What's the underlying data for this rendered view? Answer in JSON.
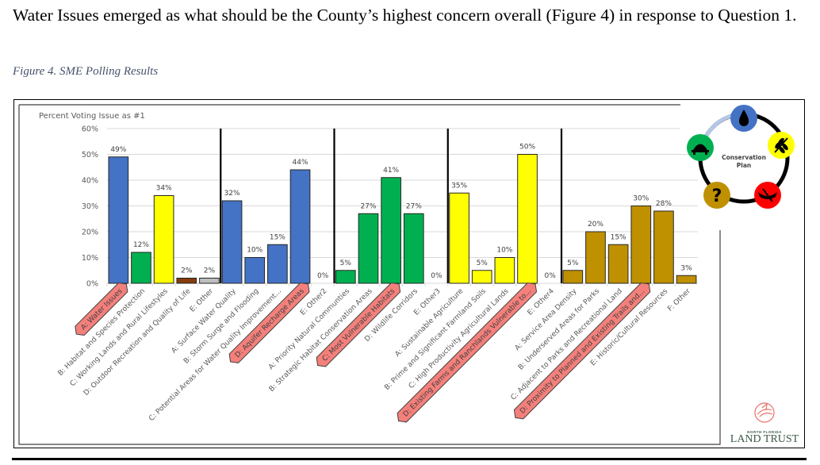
{
  "document": {
    "intro_text": "Water Issues emerged as what should be the County’s highest concern overall (Figure 4) in response to Question 1.",
    "figure_caption": "Figure 4. SME Polling Results"
  },
  "diagram": {
    "center_label_line1": "Conservation",
    "center_label_line2": "Plan",
    "nodes": [
      {
        "icon": "water-drop-icon",
        "color": "#4472c4"
      },
      {
        "icon": "wheat-icon",
        "color": "#ffff00"
      },
      {
        "icon": "canoe-icon",
        "color": "#ff0000"
      },
      {
        "icon": "question-mark-icon",
        "color": "#bf9000",
        "symbol": "?"
      },
      {
        "icon": "turtle-icon",
        "color": "#00b050"
      }
    ]
  },
  "logo": {
    "line1": "NORTH FLORIDA",
    "line2": "LAND TRUST"
  },
  "chart_data": {
    "type": "bar",
    "title": "Percent Voting Issue as #1",
    "xlabel": "",
    "ylabel": "",
    "ylim": [
      0,
      60
    ],
    "yticks": [
      "0%",
      "10%",
      "20%",
      "30%",
      "40%",
      "50%",
      "60%"
    ],
    "ytick_values": [
      0,
      10,
      20,
      30,
      40,
      50,
      60
    ],
    "grid": true,
    "groups": [
      {
        "color": "#4472c4",
        "categories": [
          {
            "label": "A: Water Issues",
            "value": 49,
            "color": "#4472c4",
            "highlighted": true
          },
          {
            "label": "B: Habitat and Species Protection",
            "value": 12,
            "color": "#00b050",
            "highlighted": false
          },
          {
            "label": "C: Working Lands and Rural Lifestyles",
            "value": 34,
            "color": "#ffff00",
            "highlighted": false
          },
          {
            "label": "D: Outdoor Recreation and Quality of Life",
            "value": 2,
            "color": "#843c0c",
            "highlighted": false
          },
          {
            "label": "E: Other",
            "value": 2,
            "color": "#bfbfbf",
            "highlighted": false
          }
        ]
      },
      {
        "color": "#4472c4",
        "categories": [
          {
            "label": "A: Surface Water Quality",
            "value": 32,
            "color": "#4472c4",
            "highlighted": false
          },
          {
            "label": "B: Storm Surge and Flooding",
            "value": 10,
            "color": "#4472c4",
            "highlighted": false
          },
          {
            "label": "C: Potential Areas for Water Quality Improvement...",
            "value": 15,
            "color": "#4472c4",
            "highlighted": false
          },
          {
            "label": "D: Aquifer Recharge Areas",
            "value": 44,
            "color": "#4472c4",
            "highlighted": true
          },
          {
            "label": "E: Other2",
            "value": 0,
            "color": "#4472c4",
            "highlighted": false
          }
        ]
      },
      {
        "color": "#00b050",
        "categories": [
          {
            "label": "A: Priority Natural Communties",
            "value": 5,
            "color": "#00b050",
            "highlighted": false
          },
          {
            "label": "B: Strategic Habitat Conservation Areas",
            "value": 27,
            "color": "#00b050",
            "highlighted": false
          },
          {
            "label": "C: Most Vulnerable Habitats",
            "value": 41,
            "color": "#00b050",
            "highlighted": true
          },
          {
            "label": "D: Wildlife Corridors",
            "value": 27,
            "color": "#00b050",
            "highlighted": false
          },
          {
            "label": "E: Other3",
            "value": 0,
            "color": "#00b050",
            "highlighted": false
          }
        ]
      },
      {
        "color": "#ffff00",
        "categories": [
          {
            "label": "A: Sustainable Agriculture",
            "value": 35,
            "color": "#ffff00",
            "highlighted": false
          },
          {
            "label": "B: Prime and Significant Farmland Soils",
            "value": 5,
            "color": "#ffff00",
            "highlighted": false
          },
          {
            "label": "C: High Productivity Agricultural Lands",
            "value": 10,
            "color": "#ffff00",
            "highlighted": false
          },
          {
            "label": "D: Existing Farms and Ranchlands Vulnerable to...",
            "value": 50,
            "color": "#ffff00",
            "highlighted": true
          },
          {
            "label": "E: Other4",
            "value": 0,
            "color": "#ffff00",
            "highlighted": false
          }
        ]
      },
      {
        "color": "#bf9000",
        "categories": [
          {
            "label": "A: Service Area Density",
            "value": 5,
            "color": "#bf9000",
            "highlighted": false
          },
          {
            "label": "B: Underserved Areas for Parks",
            "value": 20,
            "color": "#bf9000",
            "highlighted": false
          },
          {
            "label": "C: Adjacent to Parks and Recreational Land",
            "value": 15,
            "color": "#bf9000",
            "highlighted": false
          },
          {
            "label": "D: Proximity to Planned and Existing Trails and...",
            "value": 30,
            "color": "#bf9000",
            "highlighted": true
          },
          {
            "label": "E: Historic/Cultural Resources",
            "value": 28,
            "color": "#bf9000",
            "highlighted": false
          },
          {
            "label": "F: Other",
            "value": 3,
            "color": "#bf9000",
            "highlighted": false
          }
        ]
      }
    ],
    "highlight_color": "#f4807b"
  }
}
